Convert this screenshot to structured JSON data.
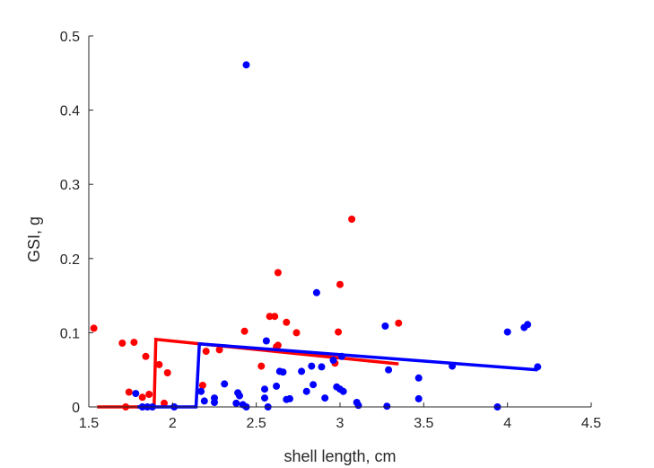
{
  "chart_data": {
    "type": "scatter",
    "title": "",
    "xlabel": "shell length, cm",
    "ylabel": "GSI, g",
    "xlim": [
      1.5,
      4.5
    ],
    "ylim": [
      0,
      0.5
    ],
    "xticks": [
      1.5,
      2,
      2.5,
      3,
      3.5,
      4,
      4.5
    ],
    "xtick_labels": [
      "1.5",
      "2",
      "2.5",
      "3",
      "3.5",
      "4",
      "4.5"
    ],
    "yticks": [
      0,
      0.1,
      0.2,
      0.3,
      0.4,
      0.5
    ],
    "ytick_labels": [
      "0",
      "0.1",
      "0.2",
      "0.3",
      "0.4",
      "0.5"
    ],
    "grid": false,
    "box": "left-bottom axes only",
    "series": [
      {
        "color": "#ff0000",
        "kind": "points",
        "points": [
          [
            1.53,
            0.106
          ],
          [
            1.7,
            0.086
          ],
          [
            1.72,
            0.0
          ],
          [
            1.74,
            0.02
          ],
          [
            1.77,
            0.087
          ],
          [
            1.82,
            0.013
          ],
          [
            1.84,
            0.068
          ],
          [
            1.86,
            0.017
          ],
          [
            1.92,
            0.057
          ],
          [
            1.95,
            0.005
          ],
          [
            1.97,
            0.046
          ],
          [
            2.18,
            0.029
          ],
          [
            2.2,
            0.075
          ],
          [
            2.28,
            0.077
          ],
          [
            2.43,
            0.102
          ],
          [
            2.53,
            0.055
          ],
          [
            2.58,
            0.122
          ],
          [
            2.61,
            0.122
          ],
          [
            2.62,
            0.081
          ],
          [
            2.63,
            0.181
          ],
          [
            2.63,
            0.083
          ],
          [
            2.68,
            0.114
          ],
          [
            2.74,
            0.1
          ],
          [
            2.97,
            0.059
          ],
          [
            2.99,
            0.101
          ],
          [
            3.0,
            0.165
          ],
          [
            3.07,
            0.253
          ],
          [
            3.35,
            0.113
          ]
        ]
      },
      {
        "color": "#ff0000",
        "kind": "fit-line",
        "points": [
          [
            1.55,
            0.0
          ],
          [
            1.89,
            0.0
          ],
          [
            1.9,
            0.091
          ],
          [
            3.35,
            0.058
          ]
        ]
      },
      {
        "color": "#0000ff",
        "kind": "points",
        "points": [
          [
            1.78,
            0.018
          ],
          [
            1.82,
            0.0
          ],
          [
            1.85,
            0.0
          ],
          [
            1.88,
            0.0
          ],
          [
            2.01,
            0.0
          ],
          [
            2.17,
            0.021
          ],
          [
            2.19,
            0.008
          ],
          [
            2.25,
            0.012
          ],
          [
            2.25,
            0.006
          ],
          [
            2.31,
            0.031
          ],
          [
            2.38,
            0.005
          ],
          [
            2.39,
            0.019
          ],
          [
            2.4,
            0.015
          ],
          [
            2.42,
            0.003
          ],
          [
            2.44,
            0.0
          ],
          [
            2.44,
            0.461
          ],
          [
            2.55,
            0.012
          ],
          [
            2.55,
            0.024
          ],
          [
            2.56,
            0.089
          ],
          [
            2.57,
            0.0
          ],
          [
            2.62,
            0.028
          ],
          [
            2.64,
            0.048
          ],
          [
            2.66,
            0.047
          ],
          [
            2.68,
            0.01
          ],
          [
            2.7,
            0.011
          ],
          [
            2.77,
            0.048
          ],
          [
            2.8,
            0.021
          ],
          [
            2.83,
            0.055
          ],
          [
            2.84,
            0.03
          ],
          [
            2.86,
            0.154
          ],
          [
            2.89,
            0.054
          ],
          [
            2.91,
            0.012
          ],
          [
            2.96,
            0.063
          ],
          [
            2.98,
            0.027
          ],
          [
            3.0,
            0.024
          ],
          [
            3.01,
            0.068
          ],
          [
            3.02,
            0.021
          ],
          [
            3.1,
            0.006
          ],
          [
            3.11,
            0.002
          ],
          [
            3.27,
            0.109
          ],
          [
            3.28,
            0.001
          ],
          [
            3.29,
            0.05
          ],
          [
            3.47,
            0.039
          ],
          [
            3.47,
            0.011
          ],
          [
            3.67,
            0.055
          ],
          [
            3.94,
            0.0
          ],
          [
            4.0,
            0.101
          ],
          [
            4.1,
            0.107
          ],
          [
            4.12,
            0.111
          ],
          [
            4.18,
            0.054
          ]
        ]
      },
      {
        "color": "#0000ff",
        "kind": "fit-line",
        "points": [
          [
            1.79,
            0.0
          ],
          [
            2.14,
            0.0
          ],
          [
            2.16,
            0.085
          ],
          [
            4.18,
            0.05
          ]
        ]
      }
    ]
  }
}
